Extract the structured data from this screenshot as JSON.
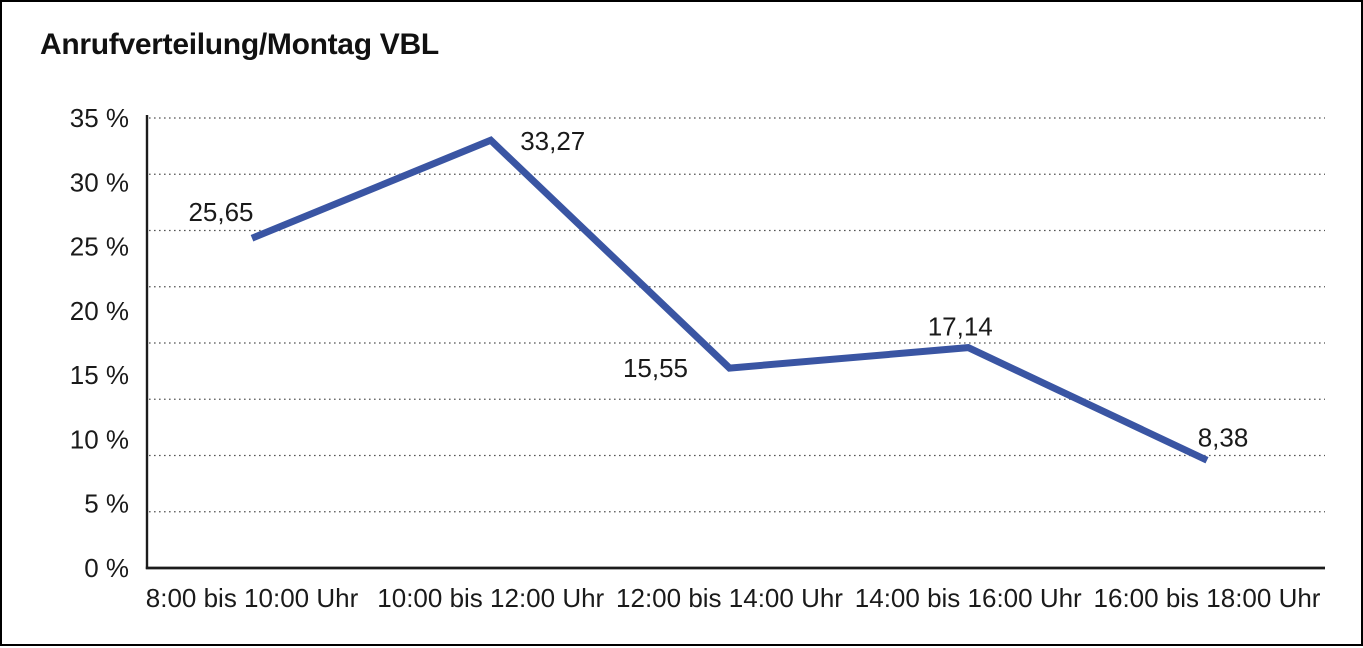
{
  "window": {
    "background": "#ffffff",
    "border_color": "#000000"
  },
  "title": "Anrufverteilung/Montag VBL",
  "chart_data": {
    "type": "line",
    "title": "Anrufverteilung/Montag VBL",
    "categories": [
      "8:00 bis 10:00 Uhr",
      "10:00 bis 12:00 Uhr",
      "12:00 bis 14:00 Uhr",
      "14:00 bis 16:00 Uhr",
      "16:00 bis 18:00 Uhr"
    ],
    "series": [
      {
        "name": "Anrufverteilung Montag VBL",
        "values": [
          25.65,
          33.27,
          15.55,
          17.14,
          8.38
        ],
        "value_labels": [
          "25,65",
          "33,27",
          "15,55",
          "17,14",
          "8,38"
        ]
      }
    ],
    "xlabel": "",
    "ylabel": "",
    "ylim": [
      0,
      35
    ],
    "ytick_values": [
      0,
      5,
      10,
      15,
      20,
      25,
      30,
      35
    ],
    "ytick_labels": [
      "0 %",
      "5 %",
      "10 %",
      "15 %",
      "20 %",
      "25 %",
      "30 %",
      "35 %"
    ],
    "grid": "horizontal-dotted",
    "grid_divisions": 8,
    "legend": "none",
    "line_color": "#3A55A3",
    "axis_color": "#1c1c1c",
    "grid_color": "#555555",
    "text_color": "#1a1a1a"
  }
}
